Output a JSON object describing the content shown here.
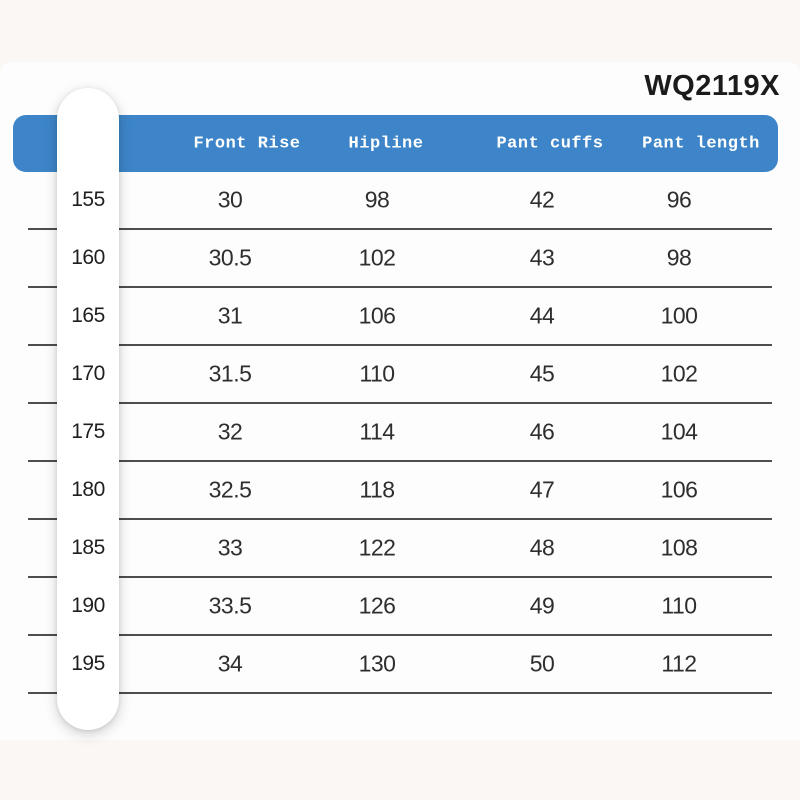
{
  "page": {
    "product_code": "WQ2119X"
  },
  "colors": {
    "header_bg": "#3d85c8",
    "header_text": "#ffffff",
    "page_bg": "#faf7f4",
    "card_bg": "#fdfdfd",
    "divider": "#4e4e4e",
    "text": "#2e2e2e"
  },
  "table": {
    "columns": [
      "Front Rise",
      "Hipline",
      "Pant cuffs",
      "Pant length"
    ],
    "rows": [
      {
        "height": "155",
        "values": [
          "30",
          "98",
          "42",
          "96"
        ]
      },
      {
        "height": "160",
        "values": [
          "30.5",
          "102",
          "43",
          "98"
        ]
      },
      {
        "height": "165",
        "values": [
          "31",
          "106",
          "44",
          "100"
        ]
      },
      {
        "height": "170",
        "values": [
          "31.5",
          "110",
          "45",
          "102"
        ]
      },
      {
        "height": "175",
        "values": [
          "32",
          "114",
          "46",
          "104"
        ]
      },
      {
        "height": "180",
        "values": [
          "32.5",
          "118",
          "47",
          "106"
        ]
      },
      {
        "height": "185",
        "values": [
          "33",
          "122",
          "48",
          "108"
        ]
      },
      {
        "height": "190",
        "values": [
          "33.5",
          "126",
          "49",
          "110"
        ]
      },
      {
        "height": "195",
        "values": [
          "34",
          "130",
          "50",
          "112"
        ]
      }
    ]
  },
  "chart_data": {
    "type": "table",
    "title": "WQ2119X",
    "columns": [
      "",
      "Front Rise",
      "Hipline",
      "Pant cuffs",
      "Pant length"
    ],
    "rows": [
      [
        155,
        30,
        98,
        42,
        96
      ],
      [
        160,
        30.5,
        102,
        43,
        98
      ],
      [
        165,
        31,
        106,
        44,
        100
      ],
      [
        170,
        31.5,
        110,
        45,
        102
      ],
      [
        175,
        32,
        114,
        46,
        104
      ],
      [
        180,
        32.5,
        118,
        47,
        106
      ],
      [
        185,
        33,
        122,
        48,
        108
      ],
      [
        190,
        33.5,
        126,
        49,
        110
      ],
      [
        195,
        34,
        130,
        50,
        112
      ]
    ]
  }
}
